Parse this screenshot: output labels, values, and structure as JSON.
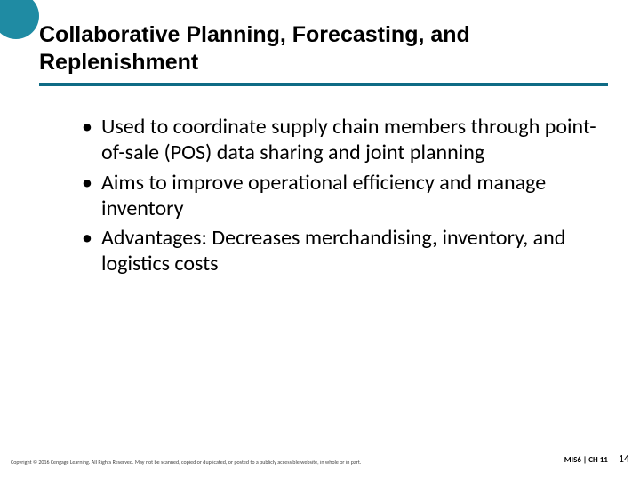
{
  "title": "Collaborative Planning, Forecasting, and Replenishment",
  "bullets": [
    "Used to coordinate supply chain members through point-of-sale (POS) data sharing and joint planning",
    "Aims to improve operational efficiency and manage inventory",
    "Advantages: Decreases merchandising, inventory, and logistics costs"
  ],
  "copyright": "Copyright © 2016 Cengage Learning. All Rights Reserved. May not be scanned, copied or duplicated, or posted to a publicly accessible website, in whole or in part.",
  "chapter": "MIS6 | CH 11",
  "page": "14",
  "colors": {
    "accent_circle": "#1f8ba3",
    "underline": "#0f6b85",
    "text": "#000000",
    "background": "#ffffff"
  },
  "typography": {
    "title_fontsize": 25,
    "title_weight": 700,
    "bullet_fontsize": 24,
    "footer_copyright_fontsize": 6,
    "footer_chapter_fontsize": 9,
    "footer_page_fontsize": 12
  }
}
